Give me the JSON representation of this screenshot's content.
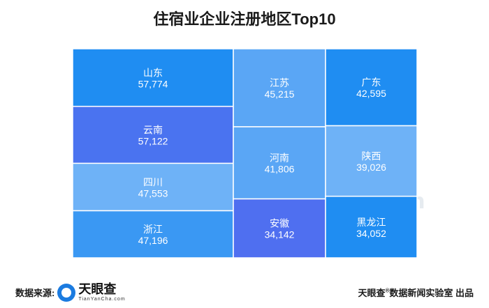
{
  "title": "住宿业企业注册地区Top10",
  "chart_data": {
    "type": "treemap",
    "title": "住宿业企业注册地区Top10",
    "items": [
      {
        "name": "山东",
        "value": 57774,
        "label": "57,774",
        "color": "#1f8df2"
      },
      {
        "name": "云南",
        "value": 57122,
        "label": "57,122",
        "color": "#4a73f0"
      },
      {
        "name": "四川",
        "value": 47553,
        "label": "47,553",
        "color": "#6eb2f7"
      },
      {
        "name": "浙江",
        "value": 47196,
        "label": "47,196",
        "color": "#3a98f3"
      },
      {
        "name": "江苏",
        "value": 45215,
        "label": "45,215",
        "color": "#5aa6f5"
      },
      {
        "name": "河南",
        "value": 41806,
        "label": "41,806",
        "color": "#5aa6f5"
      },
      {
        "name": "安徽",
        "value": 34142,
        "label": "34,142",
        "color": "#4f6ff0"
      },
      {
        "name": "广东",
        "value": 42595,
        "label": "42,595",
        "color": "#1f8df2"
      },
      {
        "name": "陕西",
        "value": 39026,
        "label": "39,026",
        "color": "#6eb2f7"
      },
      {
        "name": "黑龙江",
        "value": 34052,
        "label": "34,052",
        "color": "#1f8df2"
      }
    ]
  },
  "watermark": {
    "cn": "天眼查",
    "en": "TianYanCha.com"
  },
  "footer": {
    "source_label": "数据来源:",
    "logo_cn": "天眼查",
    "logo_en": "TianYanCha.com",
    "credit_brand": "天眼查",
    "credit_mark": "®",
    "credit_rest": "数据新闻实验室 出品"
  }
}
